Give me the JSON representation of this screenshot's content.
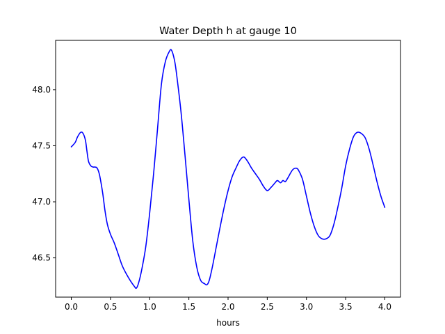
{
  "chart_data": {
    "type": "line",
    "title": "Water Depth h at gauge 10",
    "xlabel": "hours",
    "ylabel": "",
    "xlim": [
      -0.2,
      4.2
    ],
    "ylim": [
      46.15,
      48.44
    ],
    "grid": false,
    "legend": "none",
    "x_ticks": [
      0.0,
      0.5,
      1.0,
      1.5,
      2.0,
      2.5,
      3.0,
      3.5,
      4.0
    ],
    "x_tick_labels": [
      "0.0",
      "0.5",
      "1.0",
      "1.5",
      "2.0",
      "2.5",
      "3.0",
      "3.5",
      "4.0"
    ],
    "y_ticks": [
      46.5,
      47.0,
      47.5,
      48.0
    ],
    "y_tick_labels": [
      "46.5",
      "47.0",
      "47.5",
      "48.0"
    ],
    "series": [
      {
        "name": "",
        "color": "#0000ff",
        "x": [
          0.0,
          0.05,
          0.08,
          0.12,
          0.15,
          0.18,
          0.2,
          0.22,
          0.25,
          0.28,
          0.3,
          0.33,
          0.36,
          0.4,
          0.43,
          0.46,
          0.5,
          0.55,
          0.6,
          0.65,
          0.7,
          0.75,
          0.8,
          0.83,
          0.86,
          0.9,
          0.95,
          1.0,
          1.05,
          1.1,
          1.15,
          1.2,
          1.25,
          1.28,
          1.32,
          1.35,
          1.4,
          1.45,
          1.5,
          1.55,
          1.6,
          1.65,
          1.7,
          1.73,
          1.76,
          1.8,
          1.85,
          1.9,
          1.95,
          2.0,
          2.05,
          2.1,
          2.15,
          2.2,
          2.25,
          2.3,
          2.35,
          2.4,
          2.45,
          2.5,
          2.55,
          2.6,
          2.63,
          2.67,
          2.7,
          2.73,
          2.76,
          2.8,
          2.83,
          2.87,
          2.9,
          2.95,
          3.0,
          3.05,
          3.1,
          3.15,
          3.2,
          3.25,
          3.3,
          3.35,
          3.4,
          3.45,
          3.5,
          3.55,
          3.6,
          3.65,
          3.7,
          3.75,
          3.8,
          3.85,
          3.9,
          3.95,
          4.0
        ],
        "values": [
          47.49,
          47.53,
          47.58,
          47.62,
          47.61,
          47.55,
          47.45,
          47.36,
          47.32,
          47.31,
          47.31,
          47.3,
          47.24,
          47.08,
          46.92,
          46.8,
          46.71,
          46.63,
          46.53,
          46.43,
          46.36,
          46.3,
          46.25,
          46.23,
          46.28,
          46.4,
          46.6,
          46.9,
          47.25,
          47.65,
          48.05,
          48.25,
          48.34,
          48.35,
          48.25,
          48.1,
          47.8,
          47.42,
          47.02,
          46.65,
          46.42,
          46.3,
          46.27,
          46.26,
          46.3,
          46.42,
          46.6,
          46.78,
          46.95,
          47.1,
          47.22,
          47.3,
          47.37,
          47.4,
          47.36,
          47.3,
          47.25,
          47.2,
          47.14,
          47.1,
          47.13,
          47.17,
          47.19,
          47.17,
          47.19,
          47.18,
          47.21,
          47.26,
          47.29,
          47.3,
          47.28,
          47.2,
          47.05,
          46.9,
          46.78,
          46.7,
          46.67,
          46.67,
          46.7,
          46.8,
          46.95,
          47.12,
          47.32,
          47.47,
          47.58,
          47.62,
          47.61,
          47.57,
          47.47,
          47.33,
          47.18,
          47.05,
          46.95
        ]
      }
    ]
  }
}
